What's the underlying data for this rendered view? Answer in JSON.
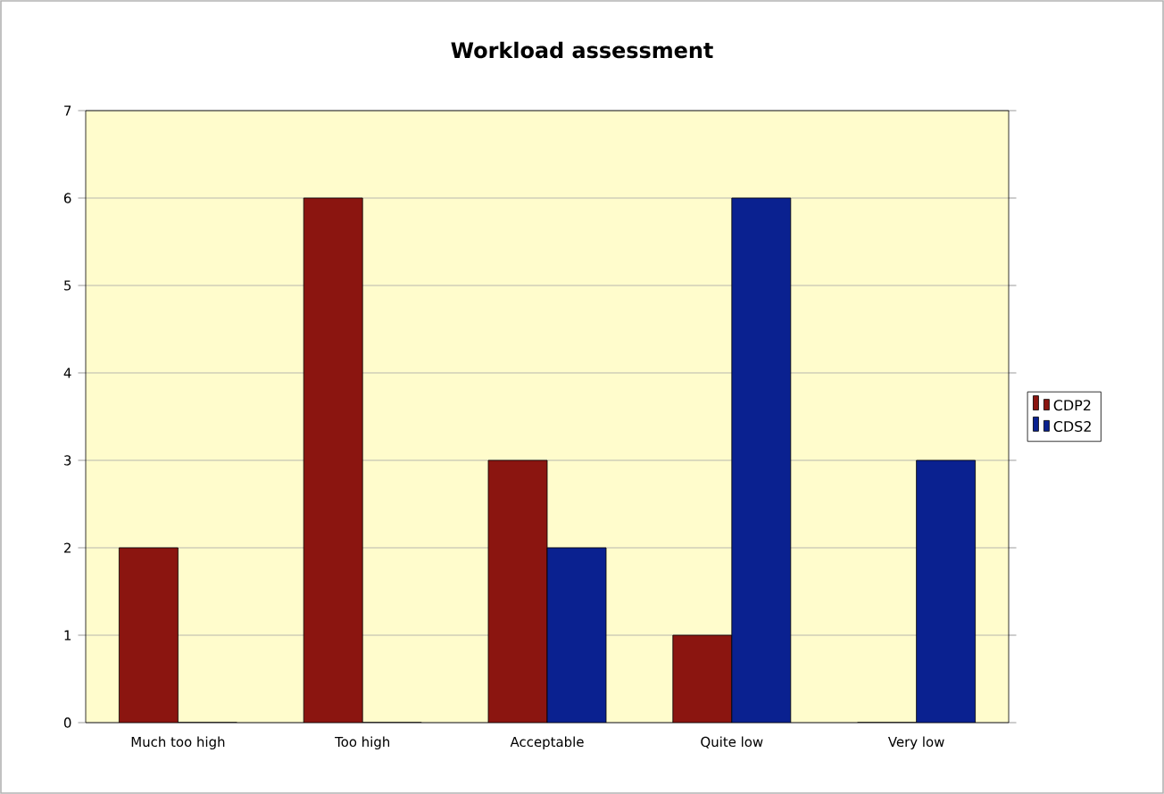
{
  "chart_data": {
    "type": "bar",
    "title": "Workload assessment",
    "categories": [
      "Much too high",
      "Too high",
      "Acceptable",
      "Quite low",
      "Very low"
    ],
    "series": [
      {
        "name": "CDP2",
        "color": "#8b1510",
        "values": [
          2,
          6,
          3,
          1,
          0
        ]
      },
      {
        "name": "CDS2",
        "color": "#0a2190",
        "values": [
          0,
          0,
          2,
          6,
          3
        ]
      }
    ],
    "ylim": [
      0,
      7
    ],
    "yticks": [
      0,
      1,
      2,
      3,
      4,
      5,
      6,
      7
    ],
    "grid": "y",
    "legend": "right"
  }
}
